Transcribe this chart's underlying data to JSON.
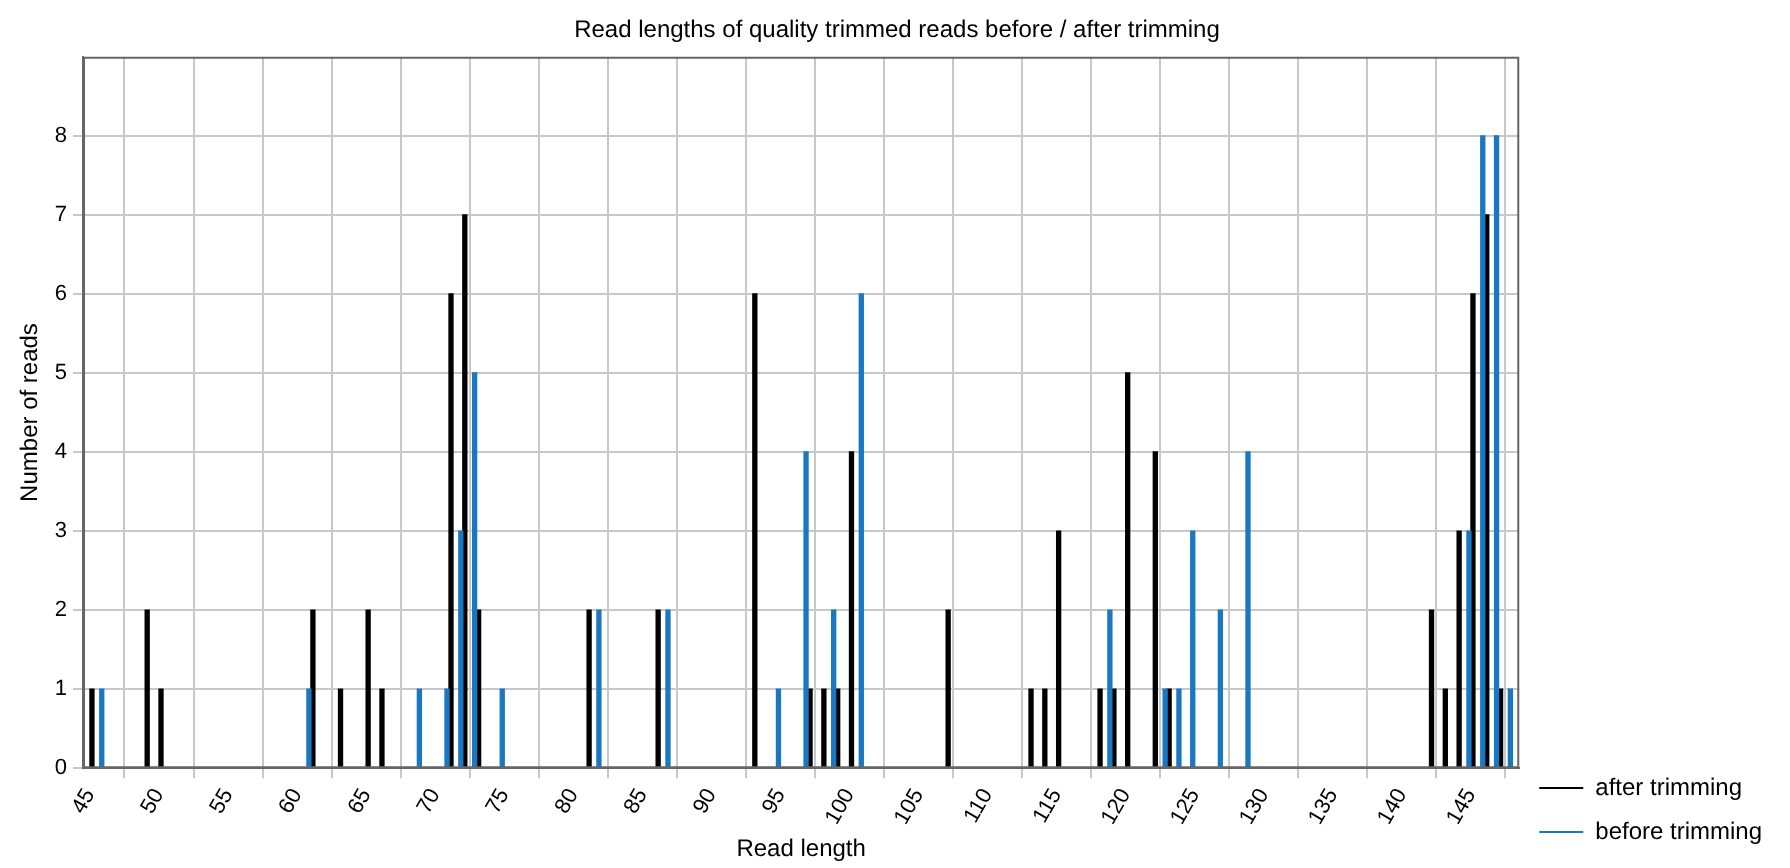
{
  "chart_data": {
    "type": "bar",
    "title": "Read lengths of quality trimmed reads before / after trimming",
    "xlabel": "Read length",
    "ylabel": "Number of reads",
    "xlim": [
      44.5,
      148.5
    ],
    "xticks": [
      45,
      50,
      55,
      60,
      65,
      70,
      75,
      80,
      85,
      90,
      95,
      100,
      105,
      110,
      115,
      120,
      125,
      130,
      135,
      140,
      145
    ],
    "ylim": [
      0,
      9
    ],
    "yticks": [
      0,
      1,
      2,
      3,
      4,
      5,
      6,
      7,
      8
    ],
    "grid": true,
    "legend": "bottom right",
    "series": [
      {
        "name": "after trimming",
        "color": "#000000",
        "x": [
          45,
          49,
          50,
          61,
          63,
          65,
          66,
          71,
          72,
          73,
          81,
          86,
          93,
          97,
          98,
          99,
          100,
          107,
          113,
          114,
          115,
          118,
          119,
          120,
          122,
          123,
          142,
          143,
          144,
          145,
          146,
          147
        ],
        "values": [
          1,
          2,
          1,
          2,
          1,
          2,
          1,
          6,
          7,
          2,
          2,
          2,
          6,
          1,
          1,
          1,
          4,
          2,
          1,
          1,
          3,
          1,
          1,
          5,
          4,
          1,
          2,
          1,
          3,
          6,
          7,
          1
        ]
      },
      {
        "name": "before trimming",
        "color": "#1a78c2",
        "x": [
          46,
          61,
          69,
          71,
          72,
          73,
          74,
          75,
          82,
          87,
          95,
          97,
          99,
          101,
          119,
          121,
          123,
          124,
          125,
          127,
          129,
          145,
          146,
          147,
          148
        ],
        "values": [
          1,
          1,
          1,
          1,
          3,
          5,
          null,
          1,
          2,
          2,
          1,
          4,
          2,
          6,
          2,
          null,
          1,
          1,
          3,
          2,
          4,
          3,
          8,
          8,
          1
        ]
      }
    ]
  }
}
